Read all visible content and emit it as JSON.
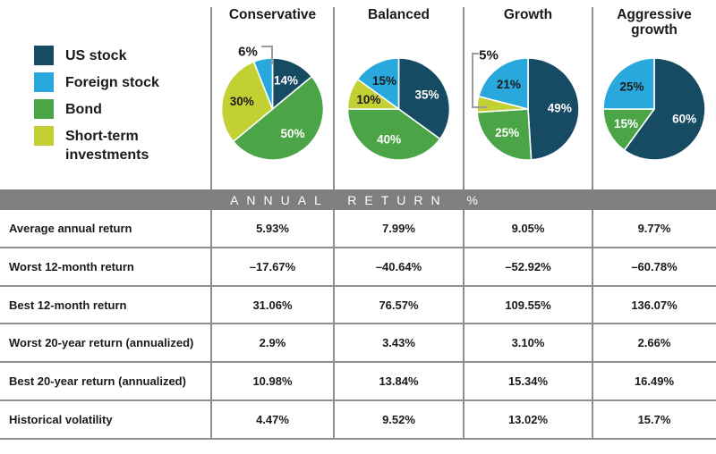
{
  "colors": {
    "bar_background": "#7F7F7F",
    "grid_line": "#8F8F8F",
    "callout_line": "#9B9B9B",
    "label_light": "#FFFFFF",
    "label_dark": "#1A1A1A"
  },
  "chart_data": {
    "type": "pie",
    "legend_position": "left",
    "legend": [
      {
        "label": "US stock",
        "color": "#174A63"
      },
      {
        "label": "Foreign stock",
        "color": "#29A8DD"
      },
      {
        "label": "Bond",
        "color": "#4BA546"
      },
      {
        "label": "Short-term investments",
        "color": "#C2D034"
      }
    ],
    "pies": [
      {
        "title": "Conservative",
        "slices": [
          {
            "name": "US stock",
            "value": 14,
            "label": "14%",
            "label_color": "#FFFFFF"
          },
          {
            "name": "Bond",
            "value": 50,
            "label": "50%",
            "label_color": "#FFFFFF"
          },
          {
            "name": "Short-term investments",
            "value": 30,
            "label": "30%",
            "label_color": "#1A1A1A"
          },
          {
            "name": "Foreign stock",
            "value": 6,
            "label": "6%",
            "label_color": "#1A1A1A",
            "callout": "elbow-right-down"
          }
        ]
      },
      {
        "title": "Balanced",
        "slices": [
          {
            "name": "US stock",
            "value": 35,
            "label": "35%",
            "label_color": "#FFFFFF"
          },
          {
            "name": "Bond",
            "value": 40,
            "label": "40%",
            "label_color": "#FFFFFF"
          },
          {
            "name": "Short-term investments",
            "value": 10,
            "label": "10%",
            "label_color": "#1A1A1A"
          },
          {
            "name": "Foreign stock",
            "value": 15,
            "label": "15%",
            "label_color": "#1A1A1A"
          }
        ]
      },
      {
        "title": "Growth",
        "slices": [
          {
            "name": "US stock",
            "value": 49,
            "label": "49%",
            "label_color": "#FFFFFF"
          },
          {
            "name": "Bond",
            "value": 25,
            "label": "25%",
            "label_color": "#FFFFFF"
          },
          {
            "name": "Short-term investments",
            "value": 5,
            "label": "5%",
            "label_color": "#1A1A1A",
            "callout": "bracket-down-right"
          },
          {
            "name": "Foreign stock",
            "value": 21,
            "label": "21%",
            "label_color": "#1A1A1A"
          }
        ]
      },
      {
        "title": "Aggressive growth",
        "slices": [
          {
            "name": "US stock",
            "value": 60,
            "label": "60%",
            "label_color": "#FFFFFF"
          },
          {
            "name": "Bond",
            "value": 15,
            "label": "15%",
            "label_color": "#FFFFFF"
          },
          {
            "name": "Foreign stock",
            "value": 25,
            "label": "25%",
            "label_color": "#1A1A1A"
          }
        ]
      }
    ]
  },
  "table": {
    "header": "ANNUAL RETURN %",
    "columns": [
      "Conservative",
      "Balanced",
      "Growth",
      "Aggressive growth"
    ],
    "rows": [
      {
        "label": "Average annual return",
        "values": [
          "5.93%",
          "7.99%",
          "9.05%",
          "9.77%"
        ]
      },
      {
        "label": "Worst 12-month return",
        "values": [
          "–17.67%",
          "–40.64%",
          "–52.92%",
          "–60.78%"
        ]
      },
      {
        "label": "Best 12-month return",
        "values": [
          "31.06%",
          "76.57%",
          "109.55%",
          "136.07%"
        ]
      },
      {
        "label": "Worst 20-year return (annualized)",
        "values": [
          "2.9%",
          "3.43%",
          "3.10%",
          "2.66%"
        ]
      },
      {
        "label": "Best 20-year return (annualized)",
        "values": [
          "10.98%",
          "13.84%",
          "15.34%",
          "16.49%"
        ]
      },
      {
        "label": "Historical volatility",
        "values": [
          "4.47%",
          "9.52%",
          "13.02%",
          "15.7%"
        ]
      }
    ]
  }
}
